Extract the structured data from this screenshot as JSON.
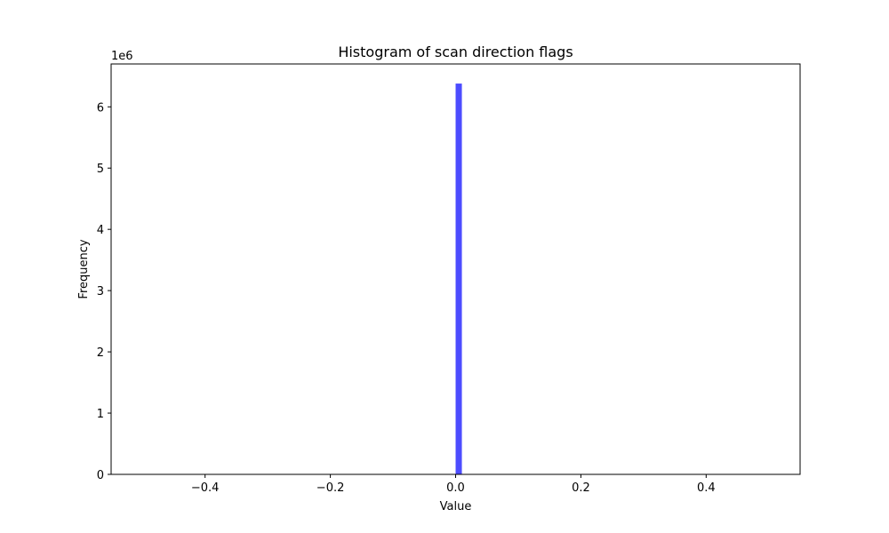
{
  "chart_data": {
    "type": "bar",
    "title": "Histogram of scan direction flags",
    "xlabel": "Value",
    "ylabel": "Frequency",
    "y_offset_text": "1e6",
    "xlim": [
      -0.55,
      0.55
    ],
    "ylim": [
      0,
      6.7
    ],
    "x_ticks": [
      -0.4,
      -0.2,
      0.0,
      0.2,
      0.4
    ],
    "x_tick_labels": [
      "−0.4",
      "−0.2",
      "0.0",
      "0.2",
      "0.4"
    ],
    "y_ticks": [
      0,
      1,
      2,
      3,
      4,
      5,
      6
    ],
    "y_tick_labels": [
      "0",
      "1",
      "2",
      "3",
      "4",
      "5",
      "6"
    ],
    "bars": [
      {
        "x0": 0.0,
        "x1": 0.01,
        "value": 6.38
      }
    ],
    "bar_color": "#0000ff",
    "bar_alpha": 0.7,
    "grid": false,
    "legend": "none"
  }
}
